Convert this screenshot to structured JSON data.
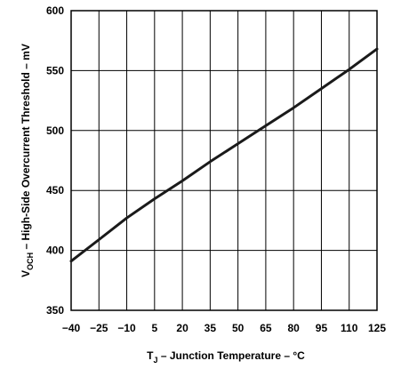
{
  "chart_data": {
    "type": "line",
    "xlabel": {
      "prefix": "T",
      "sub": "J",
      "rest": " – Junction Temperature – °C"
    },
    "ylabel": {
      "prefix": "V",
      "sub": "OCH",
      "rest": " – High-Side Overcurrent Threshold – mV"
    },
    "xlim": [
      -40,
      125
    ],
    "ylim": [
      350,
      600
    ],
    "x_ticks": [
      -40,
      -25,
      -10,
      5,
      20,
      35,
      50,
      65,
      80,
      95,
      110,
      125
    ],
    "x_tick_labels": [
      "−40",
      "−25",
      "−10",
      "5",
      "20",
      "35",
      "50",
      "65",
      "80",
      "95",
      "110",
      "125"
    ],
    "y_ticks": [
      350,
      400,
      450,
      500,
      550,
      600
    ],
    "y_tick_labels": [
      "350",
      "400",
      "450",
      "500",
      "550",
      "600"
    ],
    "grid": true,
    "series": [
      {
        "x": [
          -40,
          -25,
          -10,
          5,
          20,
          35,
          50,
          65,
          80,
          95,
          110,
          125
        ],
        "y": [
          391,
          409,
          427,
          443,
          458,
          474,
          489,
          504,
          519,
          535,
          551,
          568
        ]
      }
    ]
  }
}
